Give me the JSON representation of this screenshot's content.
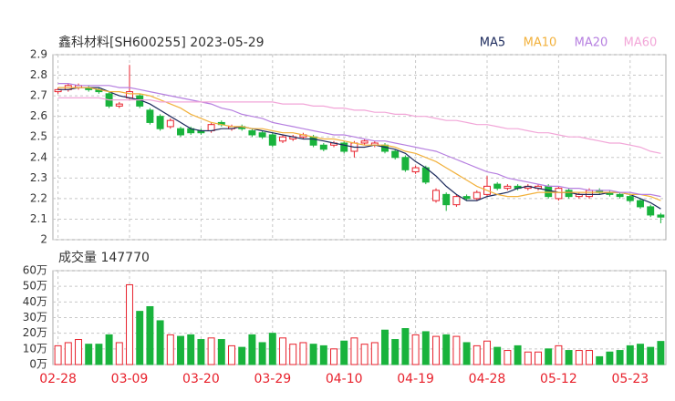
{
  "chart_data": [
    {
      "type": "candlestick",
      "title": "鑫科材料[SH600255] 2023-05-29",
      "open": [
        2.72,
        2.73,
        2.74,
        2.74,
        2.73,
        2.71,
        2.65,
        2.69,
        2.7,
        2.63,
        2.6,
        2.55,
        2.54,
        2.54,
        2.53,
        2.53,
        2.57,
        2.54,
        2.55,
        2.53,
        2.52,
        2.51,
        2.48,
        2.49,
        2.5,
        2.5,
        2.46,
        2.46,
        2.47,
        2.43,
        2.47,
        2.46,
        2.46,
        2.43,
        2.4,
        2.33,
        2.35,
        2.19,
        2.22,
        2.17,
        2.21,
        2.2,
        2.22,
        2.27,
        2.25,
        2.26,
        2.25,
        2.25,
        2.26,
        2.2,
        2.24,
        2.21,
        2.21,
        2.24,
        2.23,
        2.22,
        2.21,
        2.19,
        2.16,
        2.12
      ],
      "high": [
        2.74,
        2.76,
        2.76,
        2.75,
        2.74,
        2.72,
        2.67,
        2.85,
        2.71,
        2.64,
        2.61,
        2.59,
        2.55,
        2.55,
        2.54,
        2.57,
        2.58,
        2.56,
        2.56,
        2.54,
        2.53,
        2.52,
        2.51,
        2.51,
        2.52,
        2.51,
        2.47,
        2.48,
        2.48,
        2.48,
        2.49,
        2.48,
        2.47,
        2.44,
        2.41,
        2.36,
        2.36,
        2.25,
        2.23,
        2.22,
        2.22,
        2.24,
        2.31,
        2.28,
        2.27,
        2.27,
        2.27,
        2.27,
        2.27,
        2.26,
        2.25,
        2.23,
        2.25,
        2.25,
        2.24,
        2.23,
        2.22,
        2.2,
        2.17,
        2.13
      ],
      "low": [
        2.71,
        2.72,
        2.73,
        2.72,
        2.71,
        2.64,
        2.64,
        2.68,
        2.64,
        2.56,
        2.53,
        2.54,
        2.5,
        2.51,
        2.51,
        2.52,
        2.55,
        2.53,
        2.53,
        2.5,
        2.49,
        2.45,
        2.47,
        2.48,
        2.49,
        2.45,
        2.43,
        2.45,
        2.42,
        2.4,
        2.46,
        2.45,
        2.42,
        2.39,
        2.33,
        2.32,
        2.27,
        2.18,
        2.14,
        2.16,
        2.19,
        2.19,
        2.21,
        2.24,
        2.24,
        2.24,
        2.24,
        2.24,
        2.2,
        2.19,
        2.2,
        2.2,
        2.2,
        2.22,
        2.21,
        2.2,
        2.18,
        2.15,
        2.11,
        2.08
      ],
      "close": [
        2.73,
        2.75,
        2.75,
        2.73,
        2.72,
        2.65,
        2.66,
        2.72,
        2.65,
        2.57,
        2.54,
        2.58,
        2.51,
        2.52,
        2.52,
        2.56,
        2.56,
        2.55,
        2.54,
        2.51,
        2.5,
        2.46,
        2.5,
        2.5,
        2.51,
        2.46,
        2.44,
        2.47,
        2.43,
        2.47,
        2.48,
        2.47,
        2.43,
        2.4,
        2.34,
        2.35,
        2.28,
        2.24,
        2.17,
        2.21,
        2.2,
        2.23,
        2.26,
        2.25,
        2.26,
        2.25,
        2.26,
        2.26,
        2.21,
        2.25,
        2.21,
        2.22,
        2.24,
        2.23,
        2.22,
        2.21,
        2.19,
        2.16,
        2.12,
        2.11
      ],
      "up_color": "#e8212c",
      "down_color": "#19b33c",
      "series": [
        {
          "name": "MA5",
          "color": "#1c2a5c",
          "values": [
            2.73,
            2.73,
            2.74,
            2.74,
            2.74,
            2.72,
            2.7,
            2.69,
            2.68,
            2.66,
            2.63,
            2.6,
            2.57,
            2.54,
            2.53,
            2.53,
            2.54,
            2.54,
            2.55,
            2.54,
            2.53,
            2.52,
            2.51,
            2.5,
            2.49,
            2.49,
            2.48,
            2.47,
            2.46,
            2.45,
            2.45,
            2.46,
            2.45,
            2.44,
            2.42,
            2.38,
            2.35,
            2.31,
            2.26,
            2.22,
            2.19,
            2.19,
            2.21,
            2.22,
            2.23,
            2.25,
            2.26,
            2.25,
            2.24,
            2.23,
            2.23,
            2.22,
            2.22,
            2.22,
            2.23,
            2.23,
            2.22,
            2.2,
            2.18,
            2.15
          ]
        },
        {
          "name": "MA10",
          "color": "#f2b13c",
          "values": [
            2.74,
            2.74,
            2.74,
            2.74,
            2.73,
            2.72,
            2.72,
            2.71,
            2.71,
            2.7,
            2.68,
            2.66,
            2.64,
            2.61,
            2.59,
            2.57,
            2.56,
            2.55,
            2.55,
            2.54,
            2.54,
            2.53,
            2.52,
            2.52,
            2.51,
            2.5,
            2.49,
            2.49,
            2.48,
            2.47,
            2.46,
            2.46,
            2.46,
            2.45,
            2.43,
            2.42,
            2.4,
            2.38,
            2.35,
            2.32,
            2.29,
            2.26,
            2.24,
            2.22,
            2.21,
            2.21,
            2.22,
            2.23,
            2.23,
            2.23,
            2.23,
            2.23,
            2.23,
            2.23,
            2.23,
            2.23,
            2.22,
            2.22,
            2.21,
            2.19
          ]
        },
        {
          "name": "MA20",
          "color": "#b67fe0",
          "values": [
            2.76,
            2.76,
            2.75,
            2.75,
            2.75,
            2.75,
            2.74,
            2.74,
            2.73,
            2.72,
            2.71,
            2.7,
            2.69,
            2.68,
            2.67,
            2.66,
            2.64,
            2.63,
            2.61,
            2.6,
            2.59,
            2.57,
            2.56,
            2.55,
            2.54,
            2.53,
            2.52,
            2.51,
            2.51,
            2.5,
            2.49,
            2.48,
            2.48,
            2.47,
            2.46,
            2.45,
            2.44,
            2.43,
            2.41,
            2.39,
            2.37,
            2.35,
            2.33,
            2.32,
            2.3,
            2.29,
            2.28,
            2.27,
            2.26,
            2.26,
            2.25,
            2.25,
            2.24,
            2.24,
            2.24,
            2.23,
            2.23,
            2.22,
            2.22,
            2.21
          ]
        },
        {
          "name": "MA60",
          "color": "#f2a6d8",
          "values": [
            2.69,
            2.69,
            2.69,
            2.69,
            2.69,
            2.68,
            2.68,
            2.68,
            2.68,
            2.68,
            2.67,
            2.67,
            2.67,
            2.67,
            2.67,
            2.67,
            2.67,
            2.67,
            2.67,
            2.67,
            2.67,
            2.67,
            2.66,
            2.66,
            2.66,
            2.65,
            2.65,
            2.64,
            2.64,
            2.63,
            2.63,
            2.62,
            2.62,
            2.61,
            2.61,
            2.6,
            2.6,
            2.59,
            2.58,
            2.58,
            2.57,
            2.56,
            2.56,
            2.55,
            2.54,
            2.54,
            2.53,
            2.52,
            2.52,
            2.51,
            2.5,
            2.5,
            2.49,
            2.48,
            2.47,
            2.47,
            2.46,
            2.45,
            2.43,
            2.42
          ]
        }
      ],
      "ylim": [
        2,
        2.9
      ],
      "yticks": [
        2.9,
        2.8,
        2.7,
        2.6,
        2.5,
        2.4,
        2.3,
        2.2,
        2.1,
        2
      ],
      "grid": true
    },
    {
      "type": "bar",
      "title": "成交量 147770",
      "categories": [
        "02-28",
        null,
        null,
        null,
        null,
        null,
        null,
        "03-09",
        null,
        null,
        null,
        null,
        null,
        null,
        "03-20",
        null,
        null,
        null,
        null,
        null,
        null,
        "03-29",
        null,
        null,
        null,
        null,
        null,
        null,
        "04-10",
        null,
        null,
        null,
        null,
        null,
        null,
        "04-19",
        null,
        null,
        null,
        null,
        null,
        null,
        "04-28",
        null,
        null,
        null,
        null,
        null,
        null,
        "05-12",
        null,
        null,
        null,
        null,
        null,
        null,
        "05-23",
        null,
        null,
        null
      ],
      "values": [
        12,
        14,
        16,
        13,
        13,
        19,
        14,
        51,
        34,
        37,
        28,
        19,
        18,
        19,
        16,
        17,
        16,
        12,
        11,
        19,
        14,
        20,
        17,
        13,
        14,
        13,
        12,
        10,
        15,
        17,
        13,
        14,
        22,
        16,
        23,
        19,
        21,
        18,
        19,
        18,
        14,
        12,
        15,
        11,
        9,
        12,
        8,
        8,
        10,
        12,
        9,
        9,
        9,
        5,
        8,
        9,
        12,
        13,
        11,
        14.777
      ],
      "ylim": [
        0,
        60
      ],
      "yticks": [
        {
          "value": 60,
          "label": "60万"
        },
        {
          "value": 50,
          "label": "50万"
        },
        {
          "value": 40,
          "label": "40万"
        },
        {
          "value": 30,
          "label": "30万"
        },
        {
          "value": 20,
          "label": "20万"
        },
        {
          "value": 10,
          "label": "10万"
        },
        {
          "value": 0,
          "label": "0万"
        }
      ],
      "grid": true
    }
  ]
}
